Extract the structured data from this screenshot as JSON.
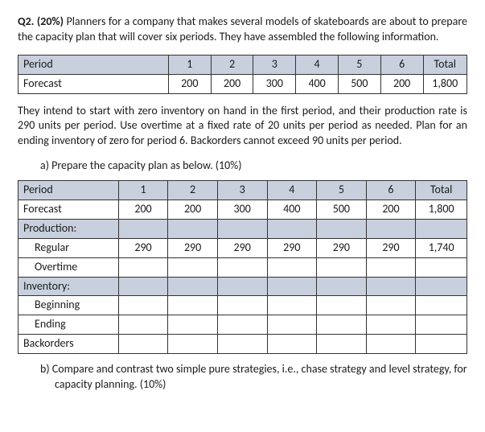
{
  "question": {
    "number": "Q2. (20%)",
    "intro": "Planners for a company that makes several models of skateboards are about to prepare the capacity plan that will cover six periods. They have assembled the following information."
  },
  "table1": {
    "rows": [
      {
        "label": "Period",
        "cells": [
          "1",
          "2",
          "3",
          "4",
          "5",
          "6",
          "Total"
        ],
        "shaded": true
      },
      {
        "label": "Forecast",
        "cells": [
          "200",
          "200",
          "300",
          "400",
          "500",
          "200",
          "1,800"
        ],
        "shaded": false
      }
    ]
  },
  "para2": "They intend to start with zero inventory on hand in the first period, and their production rate is 290 units per period. Use overtime at a fixed rate of 20 units per period as needed. Plan for an ending inventory of zero for period 6. Backorders cannot exceed 90 units per period.",
  "part_a": "a)  Prepare the capacity plan as below. (10%)",
  "table2": {
    "rows": [
      {
        "label": "Period",
        "indent": false,
        "shaded": true,
        "cells": [
          "1",
          "2",
          "3",
          "4",
          "5",
          "6",
          "Total"
        ]
      },
      {
        "label": "Forecast",
        "indent": false,
        "shaded": false,
        "cells": [
          "200",
          "200",
          "300",
          "400",
          "500",
          "200",
          "1,800"
        ]
      },
      {
        "label": "Production:",
        "indent": false,
        "shaded": true,
        "cells": [
          "",
          "",
          "",
          "",
          "",
          "",
          ""
        ]
      },
      {
        "label": "Regular",
        "indent": true,
        "shaded": false,
        "cells": [
          "290",
          "290",
          "290",
          "290",
          "290",
          "290",
          "1,740"
        ]
      },
      {
        "label": "Overtime",
        "indent": true,
        "shaded": false,
        "cells": [
          "",
          "",
          "",
          "",
          "",
          "",
          ""
        ]
      },
      {
        "label": "Inventory:",
        "indent": false,
        "shaded": true,
        "cells": [
          "",
          "",
          "",
          "",
          "",
          "",
          ""
        ]
      },
      {
        "label": "Beginning",
        "indent": true,
        "shaded": false,
        "cells": [
          "",
          "",
          "",
          "",
          "",
          "",
          ""
        ]
      },
      {
        "label": "Ending",
        "indent": true,
        "shaded": false,
        "cells": [
          "",
          "",
          "",
          "",
          "",
          "",
          ""
        ]
      },
      {
        "label": "Backorders",
        "indent": false,
        "shaded": false,
        "cells": [
          "",
          "",
          "",
          "",
          "",
          "",
          ""
        ]
      }
    ]
  },
  "part_b": "b)  Compare and contrast two simple pure strategies, i.e., chase strategy and level strategy, for capacity planning. (10%)"
}
